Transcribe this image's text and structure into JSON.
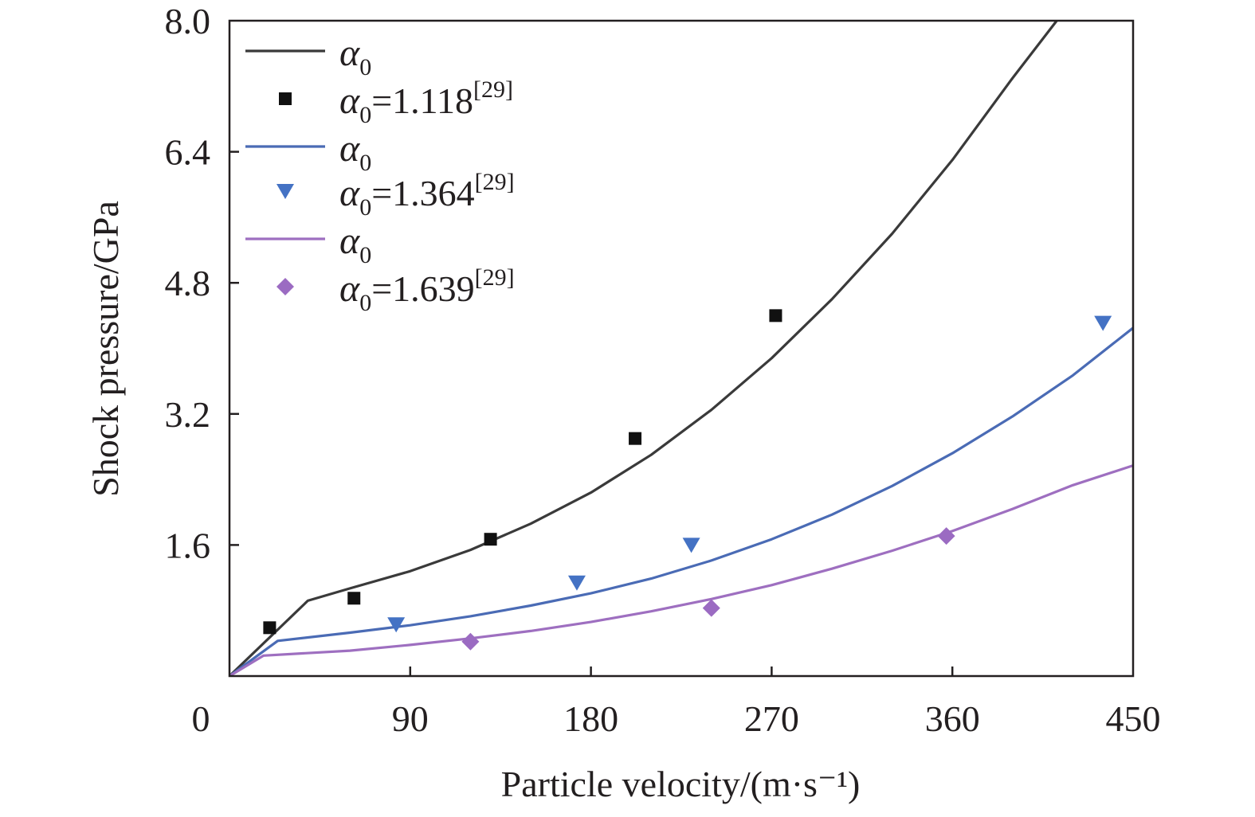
{
  "chart_data": {
    "type": "line",
    "xlabel": "Particle velocity/(m·s⁻¹)",
    "ylabel": "Shock pressure/GPa",
    "xlim": [
      0,
      450
    ],
    "ylim": [
      0,
      8.0
    ],
    "xticks": [
      "0",
      "90",
      "180",
      "270",
      "360",
      "450"
    ],
    "xtick_values": [
      0,
      90,
      180,
      270,
      360,
      450
    ],
    "yticks": [
      "1.6",
      "3.2",
      "4.8",
      "6.4",
      "8.0"
    ],
    "ytick_values": [
      1.6,
      3.2,
      4.8,
      6.4,
      8.0
    ],
    "grid": false,
    "legend_position": "top-left",
    "legend": [
      {
        "kind": "line",
        "symbol": "α",
        "sub": "0",
        "rest": "",
        "sup": "",
        "color": "#3a3a3a"
      },
      {
        "kind": "square",
        "symbol": "α",
        "sub": "0",
        "rest": "=1.118",
        "sup": "[29]",
        "color": "#111111"
      },
      {
        "kind": "line",
        "symbol": "α",
        "sub": "0",
        "rest": "",
        "sup": "",
        "color": "#4a6bb5"
      },
      {
        "kind": "triangle",
        "symbol": "α",
        "sub": "0",
        "rest": "=1.364",
        "sup": "[29]",
        "color": "#4472c4"
      },
      {
        "kind": "line",
        "symbol": "α",
        "sub": "0",
        "rest": "",
        "sup": "",
        "color": "#9e6fc0"
      },
      {
        "kind": "diamond",
        "symbol": "α",
        "sub": "0",
        "rest": "=1.639",
        "sup": "[29]",
        "color": "#9b6bc2"
      }
    ],
    "series": [
      {
        "kind": "line",
        "color": "#3a3a3a",
        "x": [
          0,
          39,
          60,
          90,
          120,
          150,
          180,
          210,
          240,
          270,
          300,
          330,
          360,
          390,
          412
        ],
        "y": [
          0,
          0.92,
          1.07,
          1.28,
          1.54,
          1.86,
          2.24,
          2.7,
          3.25,
          3.88,
          4.6,
          5.4,
          6.3,
          7.3,
          8.0
        ]
      },
      {
        "kind": "square",
        "color": "#111111",
        "x": [
          20,
          62,
          130,
          202,
          272
        ],
        "y": [
          0.59,
          0.95,
          1.67,
          2.9,
          4.4
        ]
      },
      {
        "kind": "line",
        "color": "#4a6bb5",
        "x": [
          0,
          24,
          60,
          90,
          120,
          150,
          180,
          210,
          240,
          270,
          300,
          330,
          360,
          390,
          420,
          450
        ],
        "y": [
          0,
          0.43,
          0.53,
          0.62,
          0.73,
          0.86,
          1.01,
          1.19,
          1.41,
          1.67,
          1.97,
          2.32,
          2.72,
          3.17,
          3.67,
          4.25
        ]
      },
      {
        "kind": "triangle",
        "color": "#4472c4",
        "x": [
          83,
          173,
          230,
          435
        ],
        "y": [
          0.63,
          1.14,
          1.6,
          4.31
        ]
      },
      {
        "kind": "line",
        "color": "#9e6fc0",
        "x": [
          0,
          17,
          60,
          90,
          120,
          150,
          180,
          210,
          240,
          270,
          300,
          330,
          360,
          390,
          420,
          450
        ],
        "y": [
          0,
          0.25,
          0.31,
          0.38,
          0.46,
          0.55,
          0.66,
          0.79,
          0.94,
          1.11,
          1.31,
          1.53,
          1.77,
          2.04,
          2.33,
          2.57
        ]
      },
      {
        "kind": "diamond",
        "color": "#9b6bc2",
        "x": [
          120,
          240,
          357
        ],
        "y": [
          0.42,
          0.83,
          1.71
        ]
      }
    ]
  }
}
